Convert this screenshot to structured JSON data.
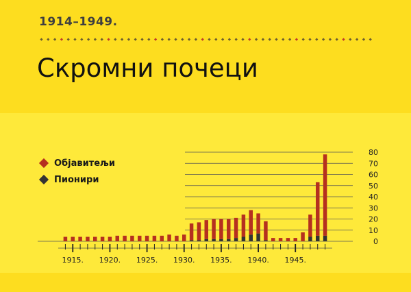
{
  "header": {
    "kicker": "1914–1949.",
    "title": "Скромни почеци"
  },
  "colors": {
    "background": "#fee93a",
    "band": "#fddd1f",
    "publishers": "#b5301f",
    "pioneers": "#333333",
    "dots_dark": "#6b5c2e",
    "dots_red": "#c0392b"
  },
  "legend": [
    {
      "label": "Објавитељи",
      "color": "#b5301f",
      "icon": "diamond-icon"
    },
    {
      "label": "Пионири",
      "color": "#333333",
      "icon": "diamond-icon"
    }
  ],
  "chart_data": {
    "type": "bar",
    "stacked": true,
    "x": [
      1914,
      1915,
      1916,
      1917,
      1918,
      1919,
      1920,
      1921,
      1922,
      1923,
      1924,
      1925,
      1926,
      1927,
      1928,
      1929,
      1930,
      1931,
      1932,
      1933,
      1934,
      1935,
      1936,
      1937,
      1938,
      1939,
      1940,
      1941,
      1942,
      1943,
      1944,
      1945,
      1946,
      1947,
      1948,
      1949
    ],
    "series": [
      {
        "name": "Објавитељи",
        "values": [
          4,
          4,
          4,
          4,
          4,
          4,
          4,
          5,
          5,
          5,
          5,
          5,
          5,
          5,
          6,
          5,
          6,
          15,
          16,
          17,
          18,
          18,
          18,
          18,
          20,
          22,
          18,
          17,
          3,
          3,
          3,
          3,
          8,
          20,
          48,
          73
        ]
      },
      {
        "name": "Пионири",
        "values": [
          0,
          0,
          0,
          0,
          0,
          0,
          0,
          0,
          0,
          0,
          0,
          0,
          0,
          0,
          0,
          0,
          0,
          1,
          1,
          2,
          2,
          2,
          2,
          3,
          4,
          6,
          7,
          1,
          0,
          0,
          0,
          0,
          0,
          4,
          5,
          5
        ]
      }
    ],
    "x_tick_labels": [
      "1915.",
      "1920.",
      "1925.",
      "1930.",
      "1935.",
      "1940.",
      "1945."
    ],
    "y_tick_labels": [
      "0",
      "10",
      "20",
      "30",
      "40",
      "50",
      "60",
      "70",
      "80"
    ],
    "ylim": [
      0,
      80
    ],
    "grid": true,
    "legend_position": "top-left"
  }
}
